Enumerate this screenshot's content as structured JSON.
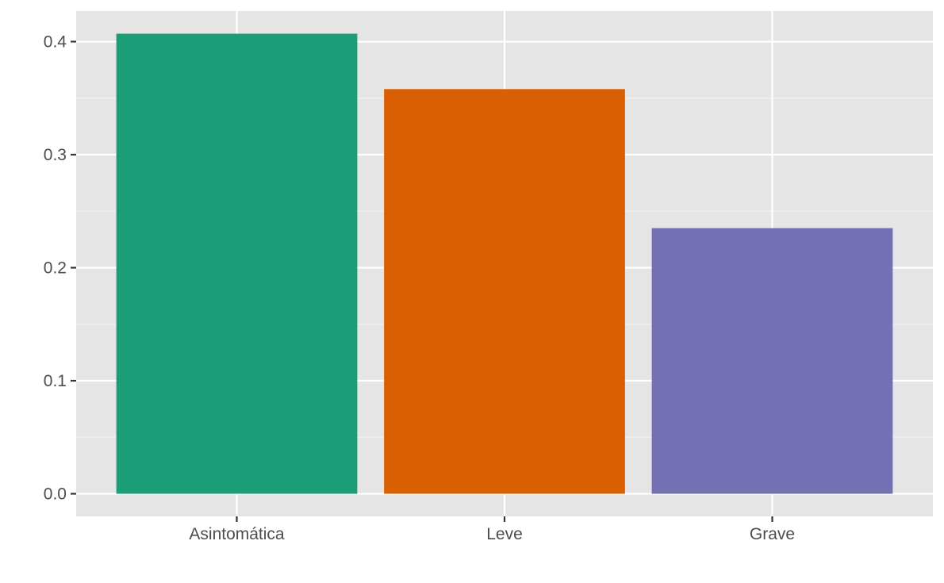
{
  "chart_data": {
    "type": "bar",
    "categories": [
      "Asintomática",
      "Leve",
      "Grave"
    ],
    "values": [
      0.407,
      0.358,
      0.235
    ],
    "colors": [
      "#1b9e77",
      "#d95f02",
      "#7570b3"
    ],
    "ylim": [
      -0.02,
      0.427
    ],
    "yticks": [
      0.0,
      0.1,
      0.2,
      0.3,
      0.4
    ],
    "ytick_labels": [
      "0.0",
      "0.1",
      "0.2",
      "0.3",
      "0.4"
    ],
    "grid": true,
    "panel_background": "#e5e5e5",
    "title": "",
    "xlabel": "",
    "ylabel": ""
  }
}
